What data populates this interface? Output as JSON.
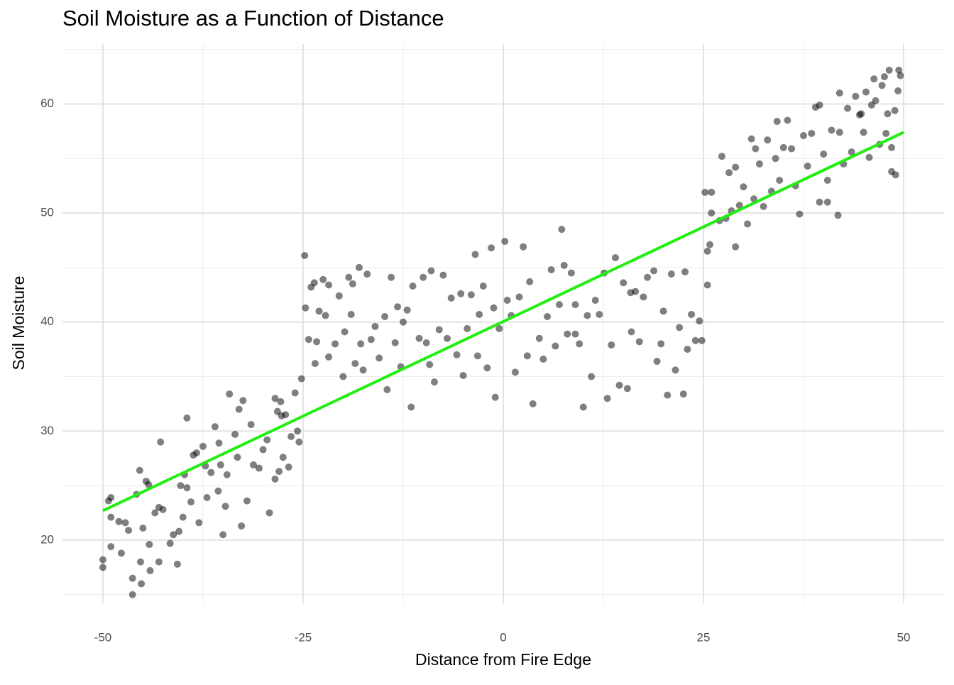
{
  "chart_data": {
    "type": "scatter",
    "title": "Soil Moisture as a Function of Distance",
    "x_label": "Distance from Fire Edge",
    "y_label": "Soil Moisture",
    "xlim": [
      -55.05,
      55.05
    ],
    "ylim": [
      14.2,
      65.5
    ],
    "xticks": [
      -50,
      -25,
      0,
      25,
      50
    ],
    "yticks": [
      20,
      30,
      40,
      50,
      60
    ],
    "x_minor_grid": [
      -37.5,
      -12.5,
      12.5,
      37.5
    ],
    "y_minor_grid": [
      15,
      25,
      35,
      45,
      55,
      65
    ],
    "grid": true,
    "color": "#000000",
    "x": [
      -50,
      -50,
      -49.3,
      -49,
      -49,
      -49,
      -48,
      -47.7,
      -47.2,
      -46.8,
      -46.3,
      -46.3,
      -45.8,
      -45.4,
      -45.3,
      -45.2,
      -45,
      -44.6,
      -44.3,
      -44.2,
      -44.1,
      -43.5,
      -43,
      -43,
      -42.8,
      -42.5,
      -41.6,
      -41.2,
      -40.7,
      -40.5,
      -40.3,
      -40,
      -39.8,
      -39.5,
      -39.5,
      -39,
      -38.7,
      -38.3,
      -38,
      -37.5,
      -37.2,
      -37,
      -36.5,
      -36,
      -35.6,
      -35.5,
      -35.3,
      -35,
      -34.7,
      -34.5,
      -34.2,
      -33.5,
      -33.2,
      -33,
      -32.7,
      -32.5,
      -32,
      -31.5,
      -31.2,
      -30.5,
      -30,
      -29.5,
      -29.2,
      -28.5,
      -28.2,
      -28.5,
      -27.7,
      -27.5,
      -27.2,
      -26.8,
      -26.5,
      -26,
      -25.7,
      -25.5,
      -25.2,
      -28,
      -27.8,
      -24.8,
      -24.7,
      -24.3,
      -24,
      -23.6,
      -23.5,
      -23.3,
      -23,
      -22.5,
      -22.2,
      -21.8,
      -21.8,
      -21,
      -20.5,
      -20,
      -19.8,
      -19.3,
      -19,
      -18.8,
      -18.5,
      -18,
      -17.8,
      -17.5,
      -17,
      -16.5,
      -16,
      -15.5,
      -14.8,
      -14.5,
      -14,
      -13.5,
      -13.2,
      -12.8,
      -12.5,
      -12,
      -11.5,
      -11.3,
      -10.5,
      -10,
      -9.6,
      -9.2,
      -9,
      -8.6,
      -8,
      -7.5,
      -7,
      -6.5,
      -5.8,
      -5.3,
      -5,
      -4.5,
      -4,
      -3.5,
      -3,
      -2.5,
      -2,
      -1.5,
      -1,
      -0.5,
      0.2,
      0.5,
      1,
      1.5,
      2,
      2.5,
      3,
      3.3,
      3.7,
      4.5,
      5,
      5.5,
      6,
      6.5,
      7,
      7.3,
      7.6,
      8,
      8.5,
      9,
      9.5,
      10,
      10.5,
      11,
      11.5,
      12,
      12.6,
      13,
      13.5,
      14,
      14.5,
      15,
      15.5,
      16,
      16.5,
      17,
      17.5,
      18,
      18.8,
      19.2,
      19.7,
      20,
      20.5,
      21,
      21.5,
      22,
      22.5,
      22.7,
      23,
      23.5,
      24,
      24.8,
      24.5,
      -1.2,
      -3.2,
      9,
      15.9,
      25.2,
      25.5,
      25.8,
      25.5,
      26,
      26,
      27,
      27.3,
      27.8,
      28.2,
      28.5,
      29,
      29,
      29.5,
      30,
      30.5,
      31,
      31.3,
      31.5,
      32,
      32.5,
      33,
      33.5,
      34,
      34.2,
      34.5,
      35,
      35.5,
      36,
      36.5,
      37,
      37.5,
      38,
      38.5,
      39,
      39.5,
      39.5,
      40,
      40.5,
      40.5,
      41,
      41.8,
      42,
      42,
      42.5,
      43,
      43.5,
      44,
      44.5,
      45,
      45.3,
      45.7,
      46,
      46.3,
      46.5,
      47,
      47.3,
      47.6,
      48,
      48.2,
      48.5,
      48.5,
      48.9,
      49,
      49.4,
      49.6,
      49.3,
      47.8,
      44.7
    ],
    "values": [
      18.2,
      17.5,
      23.6,
      23.9,
      19.4,
      22.1,
      21.7,
      18.8,
      21.6,
      20.9,
      16.5,
      15.0,
      24.2,
      26.4,
      18.0,
      16.0,
      21.1,
      25.4,
      25.1,
      19.6,
      17.2,
      22.5,
      23.0,
      18.0,
      29.0,
      22.8,
      19.7,
      20.5,
      17.8,
      20.8,
      25.0,
      22.1,
      26.0,
      31.2,
      24.8,
      23.5,
      27.8,
      28.0,
      21.6,
      28.6,
      26.8,
      23.9,
      26.2,
      30.4,
      24.5,
      28.9,
      26.9,
      20.5,
      23.1,
      26.0,
      33.4,
      29.7,
      27.6,
      32.0,
      21.3,
      32.8,
      23.6,
      30.6,
      26.9,
      26.6,
      28.3,
      29.2,
      22.5,
      25.6,
      31.8,
      33.0,
      31.4,
      27.6,
      31.5,
      26.7,
      29.5,
      33.5,
      30.0,
      29.0,
      34.8,
      26.3,
      32.7,
      46.1,
      41.3,
      38.4,
      43.2,
      43.6,
      36.2,
      38.2,
      41.0,
      43.9,
      40.6,
      36.8,
      43.4,
      38.0,
      42.4,
      35.0,
      39.1,
      44.1,
      40.7,
      43.5,
      36.2,
      45.0,
      38.0,
      35.6,
      44.4,
      38.4,
      39.6,
      36.7,
      40.5,
      33.8,
      44.1,
      38.1,
      41.4,
      35.9,
      40.0,
      41.1,
      32.2,
      43.3,
      38.5,
      44.1,
      38.1,
      36.1,
      44.7,
      34.5,
      39.3,
      44.3,
      38.5,
      42.2,
      37.0,
      42.6,
      35.1,
      39.4,
      42.5,
      46.2,
      40.7,
      43.3,
      35.8,
      46.8,
      33.1,
      39.4,
      47.4,
      42.0,
      40.6,
      35.4,
      42.3,
      46.9,
      36.9,
      43.7,
      32.5,
      38.5,
      36.6,
      40.5,
      44.8,
      37.8,
      41.6,
      48.5,
      45.2,
      38.9,
      44.5,
      41.6,
      38.0,
      32.2,
      40.6,
      35.0,
      42.0,
      40.7,
      44.5,
      33.0,
      37.9,
      45.9,
      34.2,
      43.6,
      33.9,
      39.1,
      42.8,
      38.2,
      42.3,
      44.1,
      44.7,
      36.4,
      38.0,
      41.0,
      33.3,
      44.4,
      35.6,
      39.5,
      33.4,
      44.6,
      37.5,
      40.7,
      38.3,
      38.3,
      40.1,
      41.3,
      36.9,
      38.9,
      42.7,
      51.9,
      46.5,
      47.1,
      43.4,
      50.0,
      51.9,
      49.3,
      55.2,
      49.5,
      53.7,
      50.2,
      54.2,
      46.9,
      50.7,
      52.4,
      49.0,
      56.8,
      51.3,
      55.9,
      54.5,
      50.6,
      56.7,
      52.0,
      55.0,
      58.4,
      53.0,
      56.0,
      58.5,
      55.9,
      52.5,
      49.9,
      57.1,
      54.3,
      57.3,
      59.7,
      51.0,
      59.9,
      55.4,
      53.0,
      51.0,
      57.6,
      49.8,
      61.0,
      57.4,
      54.5,
      59.6,
      55.6,
      60.7,
      59.0,
      57.4,
      61.1,
      55.1,
      59.9,
      62.3,
      60.3,
      56.3,
      61.7,
      62.5,
      59.1,
      63.1,
      56.0,
      53.8,
      59.4,
      53.5,
      63.1,
      62.6,
      61.2,
      57.3,
      59.1
    ],
    "fit": {
      "x": [
        -50,
        50
      ],
      "values": [
        22.7,
        57.4
      ],
      "color": "#22ee11"
    }
  }
}
